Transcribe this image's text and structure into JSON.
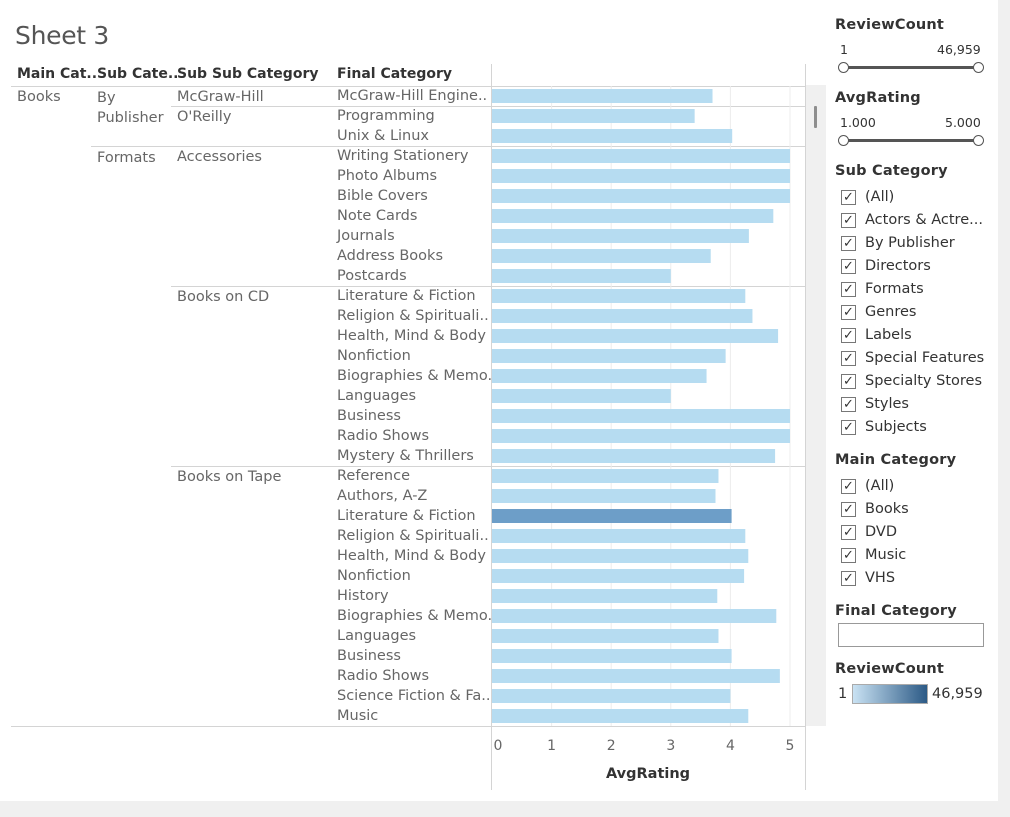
{
  "sheet": {
    "title": "Sheet 3"
  },
  "headers": {
    "main": "Main Cat..",
    "sub": "Sub Cate..",
    "subsub": "Sub Sub Category",
    "final": "Final Category"
  },
  "chart_data": {
    "type": "bar",
    "orientation": "horizontal",
    "xlabel": "AvgRating",
    "xlim": [
      0,
      5
    ],
    "xticks": [
      "0",
      "1",
      "2",
      "3",
      "4",
      "5"
    ],
    "color_measure": "ReviewCount",
    "colors": {
      "default": "#b6dcf1",
      "highlight": "#6d9ec8"
    },
    "groups": [
      {
        "main": "Books",
        "sub": "By Publisher",
        "subsub": "McGraw-Hill",
        "rows": [
          {
            "label": "McGraw-Hill Engine..",
            "value": 3.7
          }
        ]
      },
      {
        "main": "",
        "sub": "",
        "subsub": "O'Reilly",
        "rows": [
          {
            "label": "Programming",
            "value": 3.4
          },
          {
            "label": "Unix & Linux",
            "value": 4.03
          }
        ]
      },
      {
        "main": "",
        "sub": "Formats",
        "subsub": "Accessories",
        "rows": [
          {
            "label": "Writing Stationery",
            "value": 5.0
          },
          {
            "label": "Photo Albums",
            "value": 5.0
          },
          {
            "label": "Bible Covers",
            "value": 5.0
          },
          {
            "label": "Note Cards",
            "value": 4.72
          },
          {
            "label": "Journals",
            "value": 4.31
          },
          {
            "label": "Address Books",
            "value": 3.67
          },
          {
            "label": "Postcards",
            "value": 3.0
          }
        ]
      },
      {
        "main": "",
        "sub": "",
        "subsub": "Books on CD",
        "rows": [
          {
            "label": "Literature & Fiction",
            "value": 4.25
          },
          {
            "label": "Religion & Spirituali..",
            "value": 4.37
          },
          {
            "label": "Health, Mind & Body",
            "value": 4.8
          },
          {
            "label": "Nonfiction",
            "value": 3.92
          },
          {
            "label": "Biographies & Memo..",
            "value": 3.6
          },
          {
            "label": "Languages",
            "value": 3.0
          },
          {
            "label": "Business",
            "value": 5.0
          },
          {
            "label": "Radio Shows",
            "value": 5.0
          },
          {
            "label": "Mystery & Thrillers",
            "value": 4.75
          }
        ]
      },
      {
        "main": "",
        "sub": "",
        "subsub": "Books on Tape",
        "rows": [
          {
            "label": "Reference",
            "value": 3.8
          },
          {
            "label": "Authors, A-Z",
            "value": 3.75
          },
          {
            "label": "Literature & Fiction",
            "value": 4.02,
            "highlight": true
          },
          {
            "label": "Religion & Spirituali..",
            "value": 4.25
          },
          {
            "label": "Health, Mind & Body",
            "value": 4.3
          },
          {
            "label": "Nonfiction",
            "value": 4.23
          },
          {
            "label": "History",
            "value": 3.78
          },
          {
            "label": "Biographies & Memo..",
            "value": 4.77
          },
          {
            "label": "Languages",
            "value": 3.8
          },
          {
            "label": "Business",
            "value": 4.02
          },
          {
            "label": "Radio Shows",
            "value": 4.83
          },
          {
            "label": "Science Fiction & Fa..",
            "value": 4.0
          },
          {
            "label": "Music",
            "value": 4.3
          }
        ]
      }
    ]
  },
  "filters": {
    "review_count": {
      "title": "ReviewCount",
      "min": "1",
      "max": "46,959"
    },
    "avg_rating": {
      "title": "AvgRating",
      "min": "1.000",
      "max": "5.000"
    },
    "sub_category": {
      "title": "Sub Category",
      "items": [
        "(All)",
        "Actors & Actre...",
        "By Publisher",
        "Directors",
        "Formats",
        "Genres",
        "Labels",
        "Special Features",
        "Specialty Stores",
        "Styles",
        "Subjects"
      ]
    },
    "main_category": {
      "title": "Main Category",
      "items": [
        "(All)",
        "Books",
        "DVD",
        "Music",
        "VHS"
      ]
    },
    "final_category": {
      "title": "Final Category",
      "value": ""
    }
  },
  "legend": {
    "title": "ReviewCount",
    "min": "1",
    "max": "46,959"
  }
}
